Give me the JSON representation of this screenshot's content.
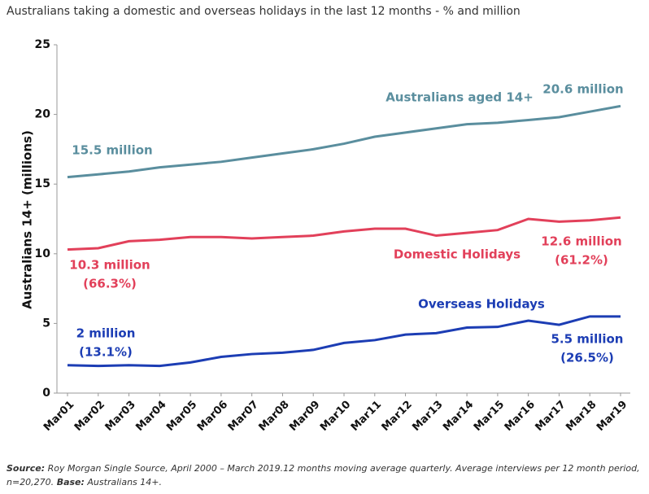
{
  "chart_data": {
    "type": "line",
    "title": "Australians taking a domestic and overseas holidays in the last 12 months - % and million",
    "y_label": "Australians 14+ (millions)",
    "categories": [
      "Mar01",
      "Mar02",
      "Mar03",
      "Mar04",
      "Mar05",
      "Mar06",
      "Mar07",
      "Mar08",
      "Mar09",
      "Mar10",
      "Mar11",
      "Mar12",
      "Mar13",
      "Mar14",
      "Mar15",
      "Mar16",
      "Mar17",
      "Mar18",
      "Mar19"
    ],
    "series": [
      {
        "name": "Australians aged 14+",
        "color": "#5a8e9e",
        "values": [
          15.5,
          15.7,
          15.9,
          16.2,
          16.4,
          16.6,
          16.9,
          17.2,
          17.5,
          17.9,
          18.4,
          18.7,
          19.0,
          19.3,
          19.4,
          19.6,
          19.8,
          20.2,
          20.6
        ],
        "annotations": [
          "15.5 million",
          "20.6 million"
        ]
      },
      {
        "name": "Domestic Holidays",
        "color": "#e2405a",
        "values": [
          10.3,
          10.4,
          10.9,
          11.0,
          11.2,
          11.2,
          11.1,
          11.2,
          11.3,
          11.6,
          11.8,
          11.8,
          11.3,
          11.5,
          11.7,
          12.5,
          12.3,
          12.4,
          12.6
        ],
        "annotations": [
          "10.3 million",
          "(66.3%)",
          "12.6 million",
          "(61.2%)"
        ]
      },
      {
        "name": "Overseas Holidays",
        "color": "#1c3db4",
        "values": [
          2.0,
          1.95,
          2.0,
          1.95,
          2.2,
          2.6,
          2.8,
          2.9,
          3.1,
          3.6,
          3.8,
          4.2,
          4.3,
          4.7,
          4.75,
          5.2,
          4.9,
          5.5,
          5.5
        ],
        "annotations": [
          "2 million",
          "(13.1%)",
          "5.5 million",
          "(26.5%)"
        ]
      }
    ],
    "ylim": [
      0,
      25
    ],
    "yticks": [
      0,
      5,
      10,
      15,
      20,
      25
    ],
    "grid": false,
    "source_label": "Source:",
    "source": "Roy Morgan Single Source, April 2000 – March 2019.12 months moving average quarterly. Average interviews per 12 month period, n=20,270.",
    "base_label": "Base:",
    "base": "Australians 14+."
  }
}
